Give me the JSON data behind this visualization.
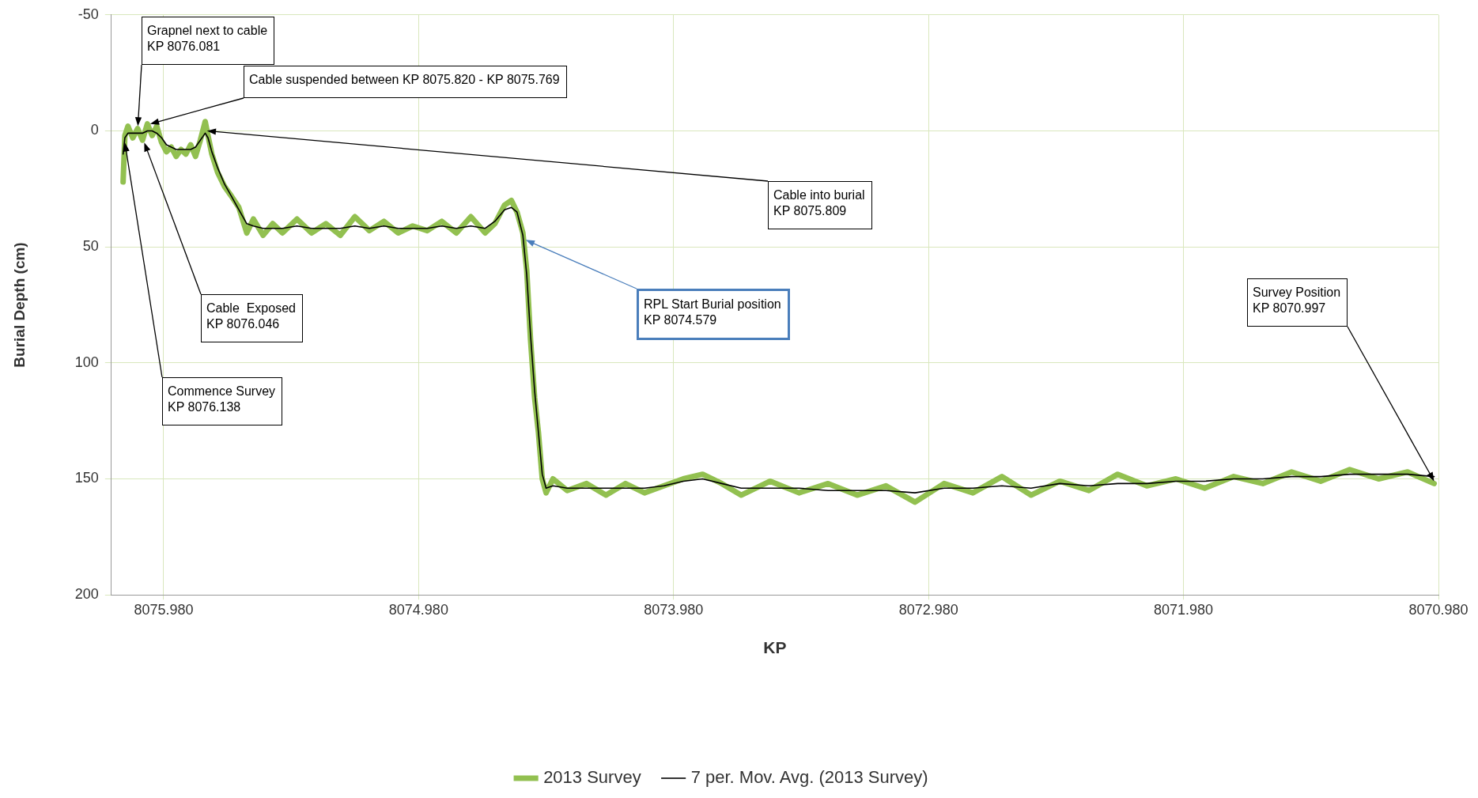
{
  "chart_data": {
    "type": "line",
    "xlabel": "KP",
    "ylabel": "Burial Depth (cm)",
    "xlim": [
      8076.185,
      8070.98
    ],
    "xticks": [
      {
        "value": 8075.98,
        "label": "8075.980"
      },
      {
        "value": 8074.98,
        "label": "8074.980"
      },
      {
        "value": 8073.98,
        "label": "8073.980"
      },
      {
        "value": 8072.98,
        "label": "8072.980"
      },
      {
        "value": 8071.98,
        "label": "8071.980"
      },
      {
        "value": 8070.98,
        "label": "8070.980"
      }
    ],
    "ylim": [
      200,
      -50
    ],
    "yticks": [
      -50,
      0,
      50,
      100,
      150,
      200
    ],
    "grid": true,
    "legend": "bottom",
    "marker": "none",
    "line_style": "solid",
    "x": [
      8076.139,
      8076.132,
      8076.12,
      8076.101,
      8076.082,
      8076.063,
      8076.044,
      8076.025,
      8076.007,
      8075.988,
      8075.969,
      8075.95,
      8075.931,
      8075.912,
      8075.893,
      8075.874,
      8075.855,
      8075.836,
      8075.817,
      8075.806,
      8075.791,
      8075.768,
      8075.741,
      8075.715,
      8075.685,
      8075.654,
      8075.628,
      8075.59,
      8075.552,
      8075.514,
      8075.457,
      8075.4,
      8075.344,
      8075.287,
      8075.23,
      8075.173,
      8075.116,
      8075.06,
      8075.003,
      8074.946,
      8074.889,
      8074.832,
      8074.775,
      8074.719,
      8074.681,
      8074.643,
      8074.616,
      8074.594,
      8074.571,
      8074.556,
      8074.541,
      8074.525,
      8074.51,
      8074.495,
      8074.48,
      8074.453,
      8074.397,
      8074.321,
      8074.245,
      8074.169,
      8074.094,
      8074.018,
      8073.942,
      8073.866,
      8073.791,
      8073.715,
      8073.601,
      8073.488,
      8073.374,
      8073.26,
      8073.147,
      8073.033,
      8072.919,
      8072.806,
      8072.692,
      8072.578,
      8072.465,
      8072.351,
      8072.238,
      8072.124,
      8072.01,
      8071.897,
      8071.783,
      8071.669,
      8071.556,
      8071.442,
      8071.328,
      8071.215,
      8071.101,
      8070.997
    ],
    "series": [
      {
        "name": "2013 Survey",
        "color": "#92c050",
        "values": [
          22,
          2,
          -2,
          3,
          -1,
          4,
          -3,
          2,
          -2,
          5,
          9,
          7,
          11,
          8,
          10,
          6,
          11,
          4,
          -4,
          2,
          10,
          18,
          24,
          28,
          33,
          44,
          38,
          45,
          40,
          44,
          38,
          44,
          40,
          45,
          37,
          43,
          39,
          44,
          41,
          43,
          39,
          44,
          37,
          44,
          40,
          32,
          30,
          35,
          44,
          60,
          90,
          115,
          130,
          150,
          156,
          150,
          155,
          152,
          157,
          152,
          156,
          153,
          150,
          148,
          152,
          157,
          151,
          156,
          152,
          157,
          153,
          160,
          152,
          156,
          149,
          157,
          151,
          155,
          148,
          153,
          150,
          154,
          149,
          152,
          147,
          151,
          146,
          150,
          147,
          152
        ]
      },
      {
        "name": "7 per. Mov. Avg. (2013 Survey)",
        "color": "#000000",
        "values": [
          10,
          3,
          1,
          1,
          1,
          1,
          0,
          0,
          1,
          3,
          6,
          7,
          8,
          8,
          8,
          8,
          7,
          4,
          1,
          3,
          9,
          16,
          23,
          28,
          34,
          40,
          41,
          42,
          42,
          42,
          41,
          42,
          42,
          42,
          41,
          42,
          41,
          42,
          42,
          42,
          41,
          42,
          41,
          42,
          39,
          34,
          33,
          35,
          45,
          62,
          88,
          112,
          130,
          148,
          154,
          153,
          154,
          154,
          154,
          154,
          154,
          153,
          151,
          150,
          152,
          154,
          154,
          154,
          155,
          155,
          155,
          156,
          154,
          154,
          153,
          154,
          152,
          153,
          152,
          152,
          151,
          151,
          150,
          150,
          149,
          149,
          148,
          148,
          148,
          149
        ]
      }
    ],
    "annotations": [
      {
        "text": "Grapnel next to cable\nKP 8076.081",
        "x": 8076.081,
        "y": -2
      },
      {
        "text": "Cable suspended between KP 8075.820 - KP 8075.769",
        "x": 8076.033,
        "y": -3
      },
      {
        "text": "Cable into burial\nKP 8075.809",
        "x": 8075.81,
        "y": 0
      },
      {
        "text": "RPL Start Burial position\nKP 8074.579",
        "x": 8074.56,
        "y": 47
      },
      {
        "text": "Survey Position\nKP 8070.997",
        "x": 8070.997,
        "y": 151
      },
      {
        "text": "Cable  Exposed\nKP 8076.046",
        "x": 8076.056,
        "y": 5
      },
      {
        "text": "Commence Survey\nKP 8076.138",
        "x": 8076.132,
        "y": 5
      }
    ]
  }
}
